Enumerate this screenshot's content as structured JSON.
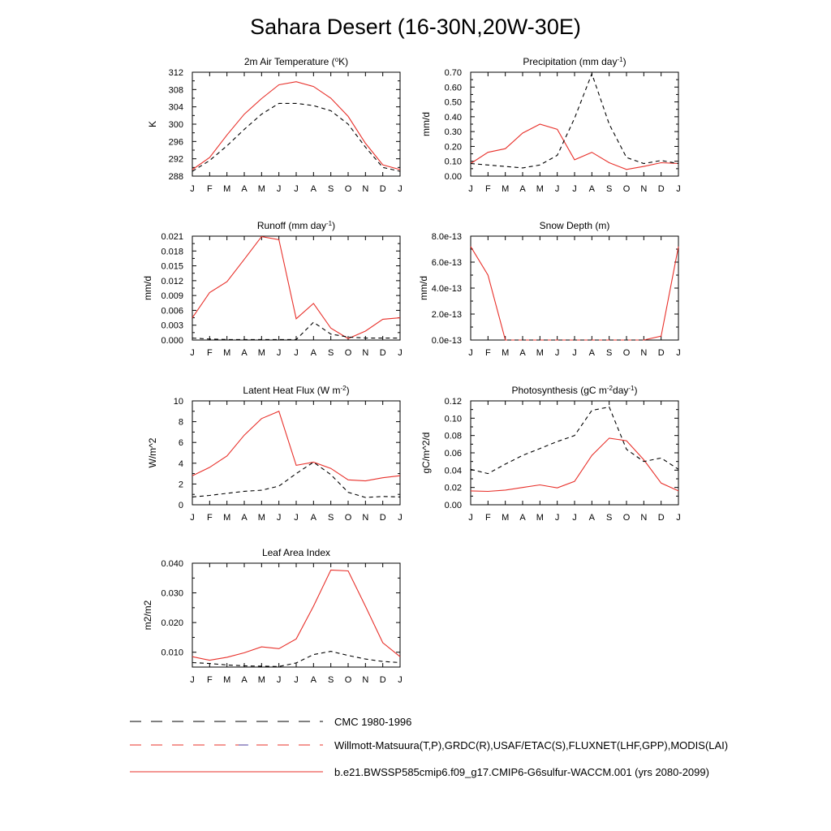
{
  "title": "Sahara Desert (16-30N,20W-30E)",
  "months": [
    "J",
    "F",
    "M",
    "A",
    "M",
    "J",
    "J",
    "A",
    "S",
    "O",
    "N",
    "D",
    "J"
  ],
  "colors": {
    "model": "#e8302a",
    "obs": "#000000",
    "obs_alt": "#3a3aa8"
  },
  "legend": [
    {
      "label": "CMC 1980-1996",
      "style": "dashed-black"
    },
    {
      "label": "Willmott-Matsuura(T,P),GRDC(R),USAF/ETAC(S),FLUXNET(LHF,GPP),MODIS(LAI)",
      "style": "dashed-red-blue"
    },
    {
      "label": "b.e21.BWSSP585cmip6.f09_g17.CMIP6-G6sulfur-WACCM.001 (yrs 2080-2099)",
      "style": "solid-red"
    }
  ],
  "chart_data": [
    {
      "type": "line",
      "title": "2m Air Temperature (°K)",
      "ylabel": "K",
      "ylim": [
        288,
        312
      ],
      "yticks": [
        288,
        292,
        296,
        300,
        304,
        308,
        312
      ],
      "yticklabels": [
        "288",
        "292",
        "296",
        "300",
        "304",
        "308",
        "312"
      ],
      "x": [
        "J",
        "F",
        "M",
        "A",
        "M",
        "J",
        "J",
        "A",
        "S",
        "O",
        "N",
        "D",
        "J"
      ],
      "series": [
        {
          "style": "model",
          "values": [
            289.5,
            292.3,
            297.5,
            302.3,
            305.9,
            309.1,
            309.8,
            308.7,
            306.0,
            301.8,
            295.6,
            290.6,
            289.5
          ]
        },
        {
          "style": "obs",
          "values": [
            289.1,
            291.6,
            295.0,
            298.8,
            302.3,
            304.8,
            304.8,
            304.3,
            303.1,
            300.0,
            294.7,
            290.0,
            289.1
          ]
        }
      ]
    },
    {
      "type": "line",
      "title": "Precipitation (mm day-1)",
      "ylabel": "mm/d",
      "ylim": [
        0,
        0.7
      ],
      "yticks": [
        0,
        0.1,
        0.2,
        0.3,
        0.4,
        0.5,
        0.6,
        0.7
      ],
      "yticklabels": [
        "0.00",
        "0.10",
        "0.20",
        "0.30",
        "0.40",
        "0.50",
        "0.60",
        "0.70"
      ],
      "x": [
        "J",
        "F",
        "M",
        "A",
        "M",
        "J",
        "J",
        "A",
        "S",
        "O",
        "N",
        "D",
        "J"
      ],
      "series": [
        {
          "style": "model",
          "values": [
            0.085,
            0.16,
            0.185,
            0.29,
            0.35,
            0.315,
            0.11,
            0.16,
            0.09,
            0.045,
            0.065,
            0.09,
            0.085
          ]
        },
        {
          "style": "obs",
          "values": [
            0.085,
            0.075,
            0.065,
            0.055,
            0.075,
            0.14,
            0.39,
            0.69,
            0.35,
            0.125,
            0.085,
            0.105,
            0.085
          ]
        }
      ]
    },
    {
      "type": "line",
      "title": "Runoff (mm day-1)",
      "ylabel": "mm/d",
      "ylim": [
        0,
        0.021
      ],
      "yticks": [
        0,
        0.003,
        0.006,
        0.009,
        0.012,
        0.015,
        0.018,
        0.021
      ],
      "yticklabels": [
        "0.000",
        "0.003",
        "0.006",
        "0.009",
        "0.012",
        "0.015",
        "0.018",
        "0.021"
      ],
      "x": [
        "J",
        "F",
        "M",
        "A",
        "M",
        "J",
        "J",
        "A",
        "S",
        "O",
        "N",
        "D",
        "J"
      ],
      "series": [
        {
          "style": "model",
          "values": [
            0.0045,
            0.0096,
            0.0118,
            0.0163,
            0.0209,
            0.0203,
            0.0043,
            0.0074,
            0.0024,
            0.0003,
            0.0018,
            0.0042,
            0.0045
          ]
        },
        {
          "style": "obs",
          "values": [
            0.0004,
            0.0002,
            0.0001,
            0.0001,
            0.0001,
            0.0001,
            0.0001,
            0.0036,
            0.0012,
            0.0006,
            0.0004,
            0.0004,
            0.0004
          ]
        }
      ]
    },
    {
      "type": "line",
      "title": "Snow Depth (m)",
      "ylabel": "mm/d",
      "ylim": [
        0,
        8e-13
      ],
      "yticks": [
        0,
        2e-13,
        4e-13,
        6e-13,
        8e-13
      ],
      "yticklabels": [
        "0.0e-13",
        "2.0e-13",
        "4.0e-13",
        "6.0e-13",
        "8.0e-13"
      ],
      "x": [
        "J",
        "F",
        "M",
        "A",
        "M",
        "J",
        "J",
        "A",
        "S",
        "O",
        "N",
        "D",
        "J"
      ],
      "series": [
        {
          "style": "model",
          "values": [
            7.2e-13,
            5e-13,
            0,
            0,
            0,
            0,
            0,
            0,
            0,
            0,
            0,
            3e-14,
            7.2e-13
          ]
        },
        {
          "style": "obs",
          "values": [
            0,
            0,
            0,
            0,
            0,
            0,
            0,
            0,
            0,
            0,
            0,
            0,
            0
          ]
        }
      ]
    },
    {
      "type": "line",
      "title": "Latent Heat Flux (W m-2)",
      "ylabel": "W/m^2",
      "ylim": [
        0,
        10
      ],
      "yticks": [
        0,
        2,
        4,
        6,
        8,
        10
      ],
      "yticklabels": [
        "0",
        "2",
        "4",
        "6",
        "8",
        "10"
      ],
      "x": [
        "J",
        "F",
        "M",
        "A",
        "M",
        "J",
        "J",
        "A",
        "S",
        "O",
        "N",
        "D",
        "J"
      ],
      "series": [
        {
          "style": "model",
          "values": [
            2.8,
            3.6,
            4.7,
            6.7,
            8.3,
            9.0,
            3.8,
            4.1,
            3.5,
            2.4,
            2.3,
            2.6,
            2.8
          ]
        },
        {
          "style": "obs",
          "values": [
            0.75,
            0.9,
            1.1,
            1.3,
            1.4,
            1.8,
            3.0,
            4.1,
            2.9,
            1.2,
            0.7,
            0.8,
            0.75
          ]
        }
      ]
    },
    {
      "type": "line",
      "title": "Photosynthesis (gC m-2day-1)",
      "ylabel": "gC/m^2/d",
      "ylim": [
        0,
        0.12
      ],
      "yticks": [
        0,
        0.02,
        0.04,
        0.06,
        0.08,
        0.1,
        0.12
      ],
      "yticklabels": [
        "0.00",
        "0.02",
        "0.04",
        "0.06",
        "0.08",
        "0.10",
        "0.12"
      ],
      "x": [
        "J",
        "F",
        "M",
        "A",
        "M",
        "J",
        "J",
        "A",
        "S",
        "O",
        "N",
        "D",
        "J"
      ],
      "series": [
        {
          "style": "model",
          "values": [
            0.016,
            0.0155,
            0.017,
            0.02,
            0.023,
            0.0195,
            0.027,
            0.057,
            0.077,
            0.074,
            0.052,
            0.025,
            0.016
          ]
        },
        {
          "style": "obs",
          "values": [
            0.041,
            0.036,
            0.047,
            0.057,
            0.065,
            0.073,
            0.08,
            0.109,
            0.113,
            0.064,
            0.05,
            0.054,
            0.041
          ]
        }
      ]
    },
    {
      "type": "line",
      "title": "Leaf Area Index",
      "ylabel": "m2/m2",
      "ylim": [
        0.005,
        0.04
      ],
      "yticks": [
        0.01,
        0.02,
        0.03,
        0.04
      ],
      "yticklabels": [
        "0.010",
        "0.020",
        "0.030",
        "0.040"
      ],
      "x": [
        "J",
        "F",
        "M",
        "A",
        "M",
        "J",
        "J",
        "A",
        "S",
        "O",
        "N",
        "D",
        "J"
      ],
      "series": [
        {
          "style": "model",
          "values": [
            0.0085,
            0.0073,
            0.0083,
            0.0098,
            0.0118,
            0.0112,
            0.0145,
            0.0255,
            0.0377,
            0.0374,
            0.0255,
            0.0132,
            0.0085
          ]
        },
        {
          "style": "obs",
          "values": [
            0.0065,
            0.0062,
            0.0057,
            0.0054,
            0.0053,
            0.0052,
            0.0064,
            0.0092,
            0.0103,
            0.0089,
            0.0077,
            0.0069,
            0.0065
          ]
        }
      ]
    }
  ]
}
